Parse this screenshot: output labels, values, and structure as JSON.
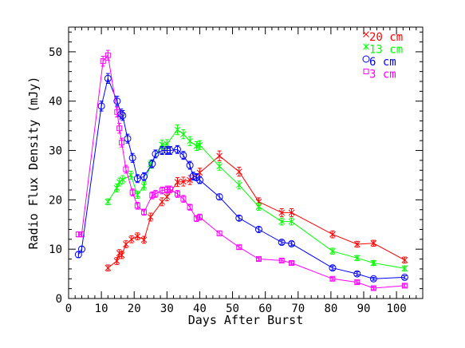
{
  "chart_data": {
    "type": "line",
    "title": "",
    "xlabel": "Days After Burst",
    "ylabel": "Radio Flux Density (mJy)",
    "xlim": [
      0,
      108
    ],
    "ylim": [
      0,
      55
    ],
    "xticks": [
      0,
      10,
      20,
      30,
      40,
      50,
      60,
      70,
      80,
      90,
      100
    ],
    "yticks": [
      0,
      10,
      20,
      30,
      40,
      50
    ],
    "grid": false,
    "legend_position": "top-right",
    "series": [
      {
        "name": "20 cm",
        "color": "#ff0000",
        "marker": "x",
        "x": [
          12,
          14.7,
          15.5,
          16.2,
          17.5,
          19.2,
          21,
          23,
          25,
          28.5,
          30,
          33.2,
          35,
          37,
          40,
          46,
          52,
          58,
          65,
          68,
          80.5,
          88,
          93,
          102.5
        ],
        "y": [
          6.2,
          7.6,
          9.2,
          8.8,
          11,
          12,
          12.6,
          11.9,
          16.5,
          19.6,
          20.6,
          23.6,
          23.7,
          24,
          25.5,
          28.9,
          25.7,
          19.6,
          17.4,
          17.4,
          13,
          11,
          11.2,
          7.8
        ],
        "err": [
          0.6,
          0.7,
          0.7,
          0.7,
          0.7,
          0.7,
          0.7,
          0.7,
          0.8,
          0.8,
          0.8,
          0.9,
          0.9,
          0.9,
          0.9,
          1,
          0.9,
          0.8,
          0.8,
          0.8,
          0.7,
          0.6,
          0.6,
          0.6
        ]
      },
      {
        "name": "13 cm",
        "color": "#00ff00",
        "marker": "star",
        "x": [
          12,
          14.7,
          15.5,
          16.5,
          19,
          21,
          23,
          25,
          28.5,
          30,
          33.2,
          35,
          37,
          39,
          40,
          46,
          52,
          58,
          65,
          68,
          80.5,
          88,
          93,
          102.5
        ],
        "y": [
          19.6,
          22.4,
          23.6,
          24.1,
          25,
          21,
          22.8,
          27.2,
          31.2,
          31.3,
          34.2,
          33.3,
          31.9,
          30.9,
          31.1,
          26.8,
          23,
          18.6,
          15.6,
          15.6,
          9.6,
          8.2,
          7.2,
          6.1
        ],
        "err": [
          0.6,
          0.8,
          0.8,
          0.8,
          0.8,
          0.7,
          0.8,
          0.8,
          0.9,
          0.9,
          1,
          0.9,
          0.9,
          0.9,
          0.9,
          0.8,
          0.8,
          0.7,
          0.7,
          0.7,
          0.6,
          0.5,
          0.5,
          0.5
        ]
      },
      {
        "name": "6 cm",
        "color": "#0000ff",
        "marker": "circle",
        "x": [
          3,
          4,
          10,
          12,
          14.8,
          16,
          16.5,
          18,
          19.5,
          21,
          23,
          25.5,
          26.5,
          28.5,
          30,
          31,
          33.2,
          35,
          37,
          38,
          39,
          40,
          46,
          52,
          58,
          65,
          68,
          80.5,
          88,
          93,
          102.5
        ],
        "y": [
          8.9,
          10,
          39,
          44.6,
          40,
          37.4,
          37.1,
          32.4,
          28.5,
          24.3,
          24.7,
          27.3,
          29.3,
          30,
          30,
          30,
          30.2,
          29,
          27,
          24.8,
          24.6,
          24,
          20.6,
          16.3,
          14,
          11.4,
          11.1,
          6.2,
          5,
          4,
          4.3
        ],
        "err": [
          0.6,
          0.6,
          1,
          1,
          1,
          1,
          1,
          0.9,
          0.9,
          0.8,
          0.8,
          0.8,
          0.8,
          0.8,
          0.8,
          0.8,
          0.8,
          0.8,
          0.8,
          0.8,
          0.7,
          0.7,
          0.6,
          0.5,
          0.5,
          0.4,
          0.4,
          0.4,
          0.4,
          0.3,
          0.3
        ]
      },
      {
        "name": "3 cm",
        "color": "#ff00ff",
        "marker": "square",
        "x": [
          3,
          4,
          10.5,
          12,
          14.8,
          15.5,
          16.2,
          17.5,
          19.5,
          21,
          23,
          25.5,
          26.5,
          28.5,
          30,
          31,
          33.2,
          35,
          37,
          39,
          40,
          46,
          52,
          58,
          65,
          68,
          80.5,
          88,
          93,
          102.5
        ],
        "y": [
          13,
          13,
          48.1,
          49.3,
          37.8,
          34.5,
          31.6,
          26.2,
          21.5,
          18.8,
          17.5,
          20.9,
          21.2,
          21.9,
          22.1,
          22.1,
          21.2,
          20.2,
          18.5,
          16.2,
          16.5,
          13.2,
          10.4,
          8,
          7.7,
          7.2,
          4,
          3.3,
          2.1,
          2.6
        ],
        "err": [
          0.5,
          0.5,
          1,
          1,
          1,
          1,
          0.9,
          0.8,
          0.7,
          0.7,
          0.6,
          0.7,
          0.7,
          0.7,
          0.7,
          0.7,
          0.7,
          0.7,
          0.6,
          0.6,
          0.6,
          0.5,
          0.4,
          0.3,
          0.3,
          0.3,
          0.3,
          0.3,
          0.3,
          0.3
        ]
      }
    ]
  }
}
